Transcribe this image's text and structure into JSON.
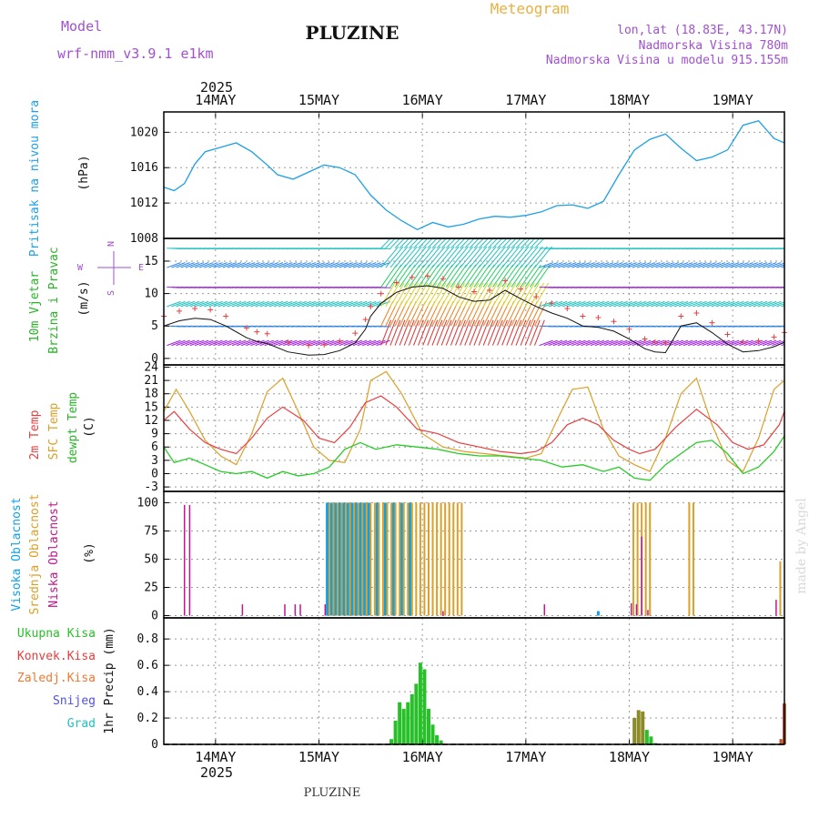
{
  "header": {
    "model_label": "Model",
    "model_name": "wrf-nmm_v3.9.1 e1km",
    "station": "PLUZINE",
    "title": "Meteogram",
    "coords": "lon,lat (18.83E, 43.17N)",
    "altitude": "Nadmorska Visina 780m",
    "model_altitude": "Nadmorska Visina u modelu 915.155m",
    "footer_station": "PLUZINE",
    "watermark": "made by Angel"
  },
  "time_axis": {
    "year": "2025",
    "day_labels": [
      "14MAY",
      "15MAY",
      "16MAY",
      "17MAY",
      "18MAY",
      "19MAY"
    ],
    "day_positions": [
      0.5,
      1.5,
      2.5,
      3.5,
      4.5,
      5.5
    ],
    "range": [
      0,
      6.0
    ]
  },
  "colors": {
    "pressure": "#1ea0e6",
    "temp2m": "#e84040",
    "sfc_temp": "#dba028",
    "dewpoint": "#28cc28",
    "high_cloud": "#10a0e8",
    "mid_cloud": "#dba028",
    "low_cloud": "#c01890",
    "precip_total": "#28c028",
    "precip_conv": "#e83c3c",
    "precip_frozen": "#f07830",
    "snow": "#5050e0",
    "hail": "#20c0c0",
    "title_purple": "#a050d0",
    "title_orange": "#e8b040"
  },
  "chart_data": [
    {
      "type": "line",
      "panel": "pressure",
      "label_lines": [
        "Pritisak na nivou mora",
        "(hPa)"
      ],
      "y_ticks": [
        1008,
        1012,
        1016,
        1020
      ],
      "ylim": [
        1008,
        1022.3
      ],
      "grid": true,
      "series": [
        {
          "x": [
            0,
            0.1,
            0.2,
            0.3,
            0.4,
            0.55,
            0.7,
            0.85,
            1.0,
            1.1,
            1.25,
            1.4,
            1.55,
            1.7,
            1.85,
            2.0,
            2.15,
            2.3,
            2.45,
            2.6,
            2.75,
            2.9,
            3.05,
            3.2,
            3.35,
            3.5,
            3.65,
            3.8,
            3.95,
            4.1,
            4.25,
            4.4,
            4.55,
            4.7,
            4.85,
            5.0,
            5.15,
            5.3,
            5.45,
            5.6,
            5.75,
            5.9,
            6.0
          ],
          "values": [
            1013.8,
            1013.4,
            1014.2,
            1016.4,
            1017.8,
            1018.3,
            1018.8,
            1017.8,
            1016.3,
            1015.2,
            1014.7,
            1015.5,
            1016.3,
            1016.0,
            1015.2,
            1012.9,
            1011.2,
            1010.0,
            1009.0,
            1009.8,
            1009.3,
            1009.6,
            1010.2,
            1010.5,
            1010.4,
            1010.6,
            1011.0,
            1011.7,
            1011.8,
            1011.4,
            1012.2,
            1015.2,
            1018.0,
            1019.2,
            1019.8,
            1018.2,
            1016.8,
            1017.2,
            1018.0,
            1020.8,
            1021.3,
            1019.3,
            1018.8
          ]
        }
      ]
    },
    {
      "type": "line",
      "panel": "wind",
      "label_lines": [
        "10m Vjetar",
        "Brzina i Pravac",
        "(m/s)"
      ],
      "compass": {
        "n": "N",
        "e": "E",
        "s": "S",
        "w": "W"
      },
      "y_ticks": [
        0,
        5,
        10,
        15
      ],
      "ylim": [
        -1,
        18.5
      ],
      "grid": true,
      "series": [
        {
          "name": "speed",
          "x": [
            0,
            0.15,
            0.3,
            0.45,
            0.6,
            0.8,
            0.9,
            1.0,
            1.2,
            1.4,
            1.55,
            1.7,
            1.85,
            1.95,
            2.0,
            2.1,
            2.25,
            2.4,
            2.55,
            2.7,
            2.85,
            3.0,
            3.15,
            3.3,
            3.45,
            3.6,
            3.75,
            3.9,
            4.05,
            4.2,
            4.35,
            4.5,
            4.65,
            4.75,
            4.85,
            5.0,
            5.15,
            5.3,
            5.45,
            5.6,
            5.75,
            5.9,
            6.0
          ],
          "values": [
            5.0,
            5.8,
            6.2,
            6.0,
            5.0,
            3.2,
            2.6,
            2.3,
            1.0,
            0.5,
            0.6,
            1.2,
            2.4,
            4.5,
            6.5,
            8.5,
            10.2,
            11.0,
            11.2,
            10.8,
            9.5,
            8.8,
            9.0,
            10.5,
            9.2,
            8.0,
            7.0,
            6.2,
            5.0,
            4.8,
            4.2,
            3.0,
            1.5,
            1.0,
            0.9,
            5.0,
            5.5,
            4.0,
            2.2,
            1.0,
            1.2,
            1.8,
            2.5
          ]
        }
      ]
    },
    {
      "type": "line",
      "panel": "temperature",
      "label_lines": [
        "2m Temp",
        "SFC Temp",
        "dewpt Temp",
        "(C)"
      ],
      "y_ticks": [
        -3,
        0,
        3,
        6,
        9,
        12,
        15,
        18,
        21,
        24
      ],
      "ylim": [
        -4,
        24.5
      ],
      "grid": true,
      "series": [
        {
          "name": "2m Temp",
          "x": [
            0,
            0.1,
            0.25,
            0.4,
            0.55,
            0.7,
            0.85,
            1.0,
            1.15,
            1.35,
            1.5,
            1.65,
            1.8,
            1.95,
            2.1,
            2.25,
            2.45,
            2.65,
            2.85,
            3.05,
            3.25,
            3.45,
            3.6,
            3.75,
            3.9,
            4.05,
            4.2,
            4.35,
            4.5,
            4.6,
            4.75,
            4.95,
            5.15,
            5.35,
            5.5,
            5.65,
            5.8,
            5.95,
            6.0
          ],
          "values": [
            12.0,
            14.0,
            10.0,
            7.0,
            5.5,
            4.5,
            8.0,
            12.5,
            15.0,
            12.0,
            8.0,
            7.0,
            10.5,
            16.0,
            17.5,
            15.0,
            10.0,
            9.0,
            7.0,
            6.0,
            5.0,
            4.5,
            5.0,
            7.0,
            11.0,
            12.5,
            11.0,
            7.5,
            5.5,
            4.5,
            5.5,
            10.5,
            14.5,
            11.0,
            7.0,
            5.5,
            6.5,
            11.0,
            14.0
          ]
        },
        {
          "name": "SFC Temp",
          "x": [
            0,
            0.12,
            0.25,
            0.4,
            0.55,
            0.7,
            0.85,
            1.0,
            1.15,
            1.3,
            1.45,
            1.6,
            1.75,
            1.9,
            2.0,
            2.15,
            2.3,
            2.5,
            2.7,
            2.9,
            3.1,
            3.3,
            3.5,
            3.65,
            3.8,
            3.95,
            4.1,
            4.25,
            4.4,
            4.55,
            4.7,
            4.85,
            5.0,
            5.15,
            5.3,
            5.45,
            5.6,
            5.75,
            5.9,
            6.0
          ],
          "values": [
            14.0,
            19.0,
            14.0,
            7.5,
            4.0,
            2.0,
            9.0,
            18.5,
            21.5,
            14.0,
            6.0,
            3.0,
            2.5,
            10.0,
            21.0,
            23.0,
            18.0,
            9.0,
            6.0,
            5.0,
            4.5,
            4.0,
            3.5,
            4.5,
            12.0,
            19.0,
            19.5,
            10.0,
            4.0,
            2.0,
            0.5,
            8.0,
            18.0,
            21.5,
            11.0,
            3.0,
            0.5,
            8.0,
            19.0,
            21.0
          ]
        },
        {
          "name": "dewpt Temp",
          "x": [
            0,
            0.1,
            0.25,
            0.4,
            0.55,
            0.7,
            0.85,
            1.0,
            1.15,
            1.3,
            1.45,
            1.6,
            1.75,
            1.9,
            2.05,
            2.25,
            2.45,
            2.65,
            2.85,
            3.05,
            3.25,
            3.45,
            3.65,
            3.85,
            4.05,
            4.25,
            4.4,
            4.55,
            4.7,
            4.85,
            5.0,
            5.15,
            5.3,
            5.45,
            5.6,
            5.75,
            5.9,
            6.0
          ],
          "values": [
            6.0,
            2.5,
            3.5,
            2.0,
            0.5,
            0.0,
            0.5,
            -1.0,
            0.5,
            -0.5,
            0.0,
            1.5,
            5.5,
            7.0,
            5.5,
            6.5,
            6.0,
            5.5,
            4.5,
            4.0,
            4.0,
            3.5,
            3.0,
            1.5,
            2.0,
            0.5,
            1.5,
            -1.0,
            -1.5,
            2.0,
            4.5,
            7.0,
            7.5,
            4.5,
            0.0,
            1.5,
            5.0,
            8.5
          ]
        }
      ]
    },
    {
      "type": "bar",
      "panel": "clouds",
      "label_lines": [
        "Visoka Oblacnost",
        "Srednja Oblacnost",
        "Niska Oblacnost",
        "(%)"
      ],
      "y_ticks": [
        0,
        25,
        50,
        75,
        100
      ],
      "ylim": [
        -2,
        110
      ],
      "grid": true,
      "series": [
        {
          "name": "Visoka Oblacnost",
          "x": [
            1.58,
            1.62,
            1.66,
            1.7,
            1.74,
            1.78,
            1.82,
            1.86,
            1.9,
            1.94,
            1.98,
            2.06,
            2.14,
            2.22,
            2.3,
            2.38,
            4.2
          ],
          "values": [
            100,
            100,
            100,
            100,
            100,
            100,
            100,
            100,
            100,
            100,
            100,
            100,
            100,
            100,
            100,
            100,
            4
          ]
        },
        {
          "name": "Srednja Oblacnost",
          "x": [
            1.6,
            1.64,
            1.68,
            1.72,
            1.76,
            1.8,
            1.84,
            1.88,
            1.92,
            1.96,
            2.0,
            2.04,
            2.08,
            2.12,
            2.16,
            2.2,
            2.24,
            2.28,
            2.32,
            2.36,
            2.4,
            2.44,
            2.48,
            2.52,
            2.56,
            2.6,
            2.64,
            2.68,
            2.72,
            2.76,
            2.8,
            2.84,
            2.88,
            4.54,
            4.58,
            4.62,
            4.66,
            4.7,
            5.08,
            5.12,
            5.96
          ],
          "values": [
            100,
            100,
            100,
            100,
            100,
            100,
            100,
            100,
            100,
            100,
            100,
            100,
            100,
            100,
            100,
            100,
            100,
            100,
            100,
            100,
            100,
            100,
            100,
            100,
            100,
            100,
            100,
            100,
            100,
            100,
            100,
            100,
            100,
            100,
            100,
            100,
            100,
            100,
            100,
            100,
            48
          ]
        },
        {
          "name": "Niska Oblacnost",
          "x": [
            0.2,
            0.25,
            1.56,
            0.76,
            1.17,
            1.27,
            1.32,
            2.7,
            3.68,
            4.52,
            4.57,
            4.62,
            4.68,
            5.92
          ],
          "values": [
            98,
            98,
            10,
            10,
            10,
            10,
            10,
            4,
            10,
            11,
            10,
            70,
            5,
            14
          ]
        }
      ]
    },
    {
      "type": "bar",
      "panel": "precip",
      "label_lines": [
        "1hr Precip (mm)"
      ],
      "legend": [
        "Ukupna Kisa",
        "Konvek.Kisa",
        "Zaledj.Kisa",
        "Snijeg",
        "Grad"
      ],
      "y_ticks": [
        0,
        0.2,
        0.4,
        0.6,
        0.8
      ],
      "ylim": [
        0,
        0.96
      ],
      "grid": true,
      "series": [
        {
          "name": "Ukupna Kisa",
          "x": [
            2.2,
            2.24,
            2.28,
            2.32,
            2.36,
            2.4,
            2.44,
            2.48,
            2.52,
            2.56,
            2.6,
            2.64,
            2.68,
            4.55,
            4.59,
            4.63,
            4.67,
            4.71,
            4.75,
            5.97,
            6.0
          ],
          "values": [
            0.04,
            0.18,
            0.32,
            0.27,
            0.32,
            0.38,
            0.46,
            0.62,
            0.57,
            0.27,
            0.15,
            0.07,
            0.03,
            0.2,
            0.26,
            0.25,
            0.11,
            0.06,
            0.01,
            0.04,
            0.31
          ]
        },
        {
          "name": "Konvek.Kisa",
          "x": [
            4.55,
            4.59,
            4.63,
            5.97,
            6.0
          ],
          "values": [
            0.2,
            0.26,
            0.25,
            0.04,
            0.31
          ]
        }
      ]
    }
  ]
}
